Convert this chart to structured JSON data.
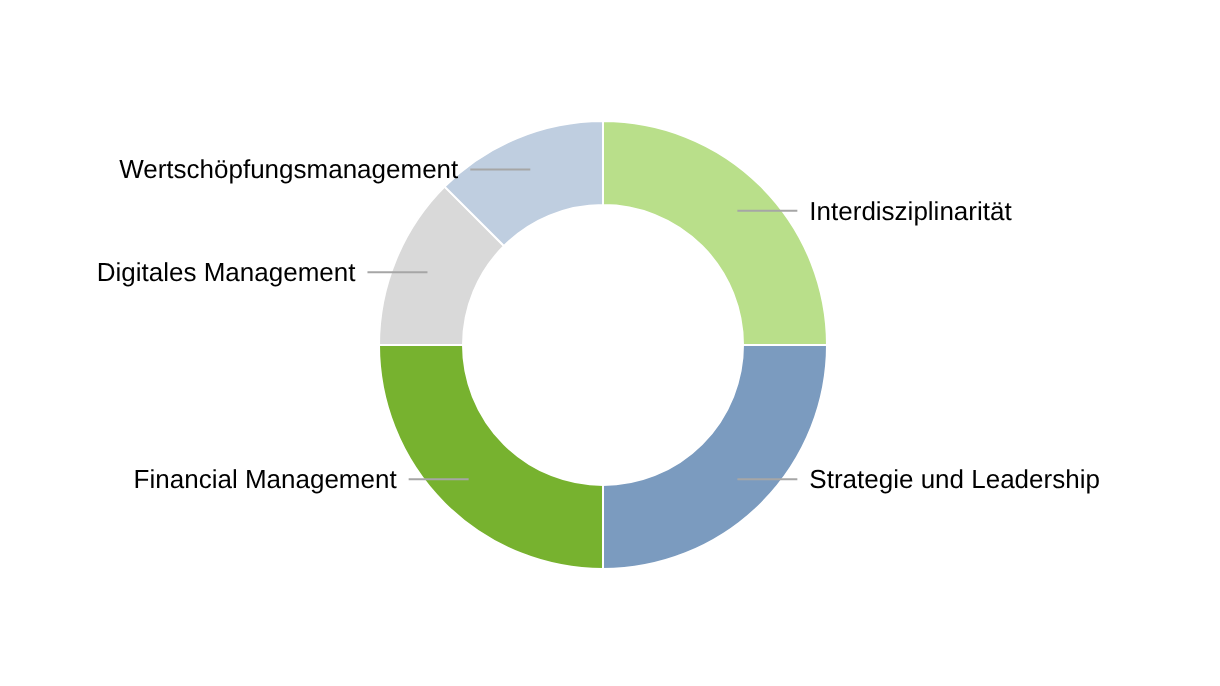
{
  "chart_data": {
    "type": "donut",
    "categories": [
      "Interdisziplinarität",
      "Strategie und Leadership",
      "Financial Management",
      "Digitales Management",
      "Wertschöpfungsmanagement"
    ],
    "values": [
      25,
      25,
      25,
      12.5,
      12.5
    ],
    "colors": [
      "#b9df8a",
      "#7b9bbf",
      "#77b22f",
      "#d9d9d9",
      "#bfcee0"
    ]
  }
}
